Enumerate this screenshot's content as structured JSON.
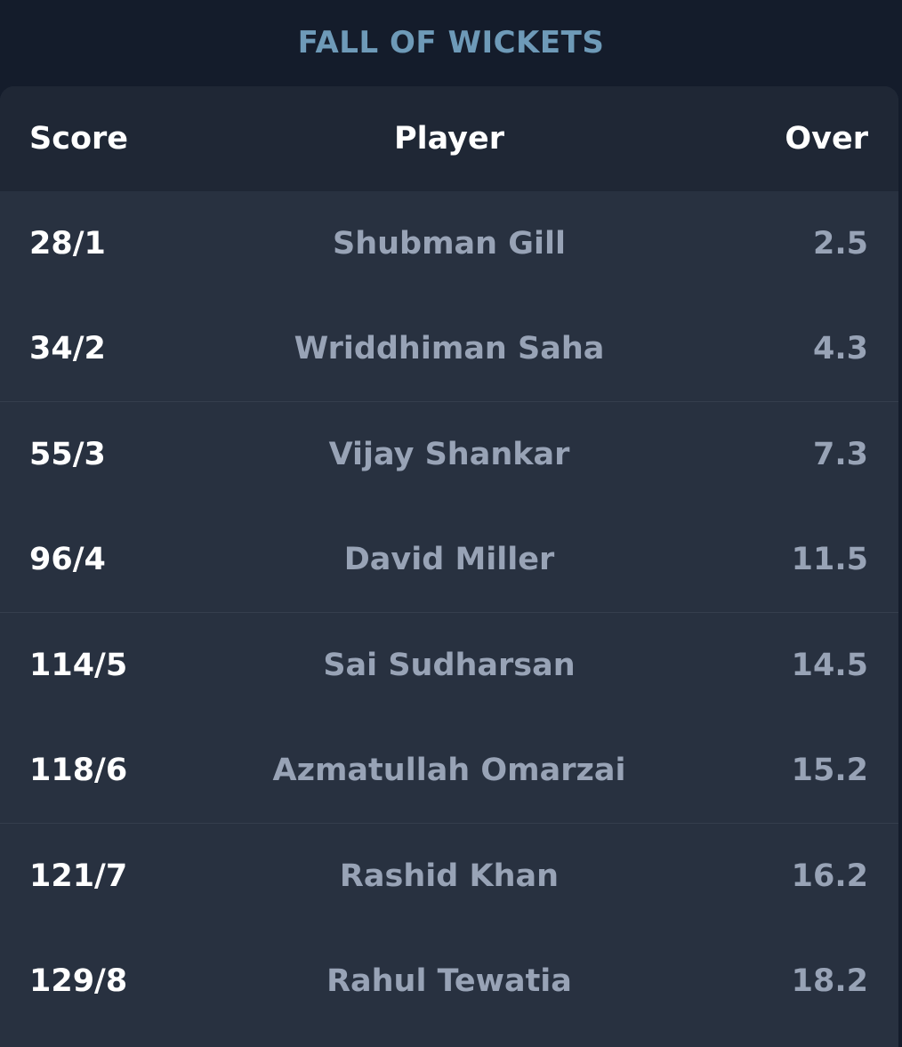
{
  "title": "FALL OF WICKETS",
  "table": {
    "headers": {
      "score": "Score",
      "player": "Player",
      "over": "Over"
    },
    "rows": [
      {
        "score": "28/1",
        "player": "Shubman Gill",
        "over": "2.5"
      },
      {
        "score": "34/2",
        "player": "Wriddhiman Saha",
        "over": "4.3"
      },
      {
        "score": "55/3",
        "player": "Vijay Shankar",
        "over": "7.3"
      },
      {
        "score": "96/4",
        "player": "David Miller",
        "over": "11.5"
      },
      {
        "score": "114/5",
        "player": "Sai Sudharsan",
        "over": "14.5"
      },
      {
        "score": "118/6",
        "player": "Azmatullah Omarzai",
        "over": "15.2"
      },
      {
        "score": "121/7",
        "player": "Rashid Khan",
        "over": "16.2"
      },
      {
        "score": "129/8",
        "player": "Rahul Tewatia",
        "over": "18.2"
      }
    ]
  },
  "colors": {
    "background": "#141c2b",
    "card": "#283140",
    "header": "#1f2735",
    "title": "#6e9ab8",
    "muted_text": "#98a3b6",
    "primary_text": "#ffffff"
  }
}
